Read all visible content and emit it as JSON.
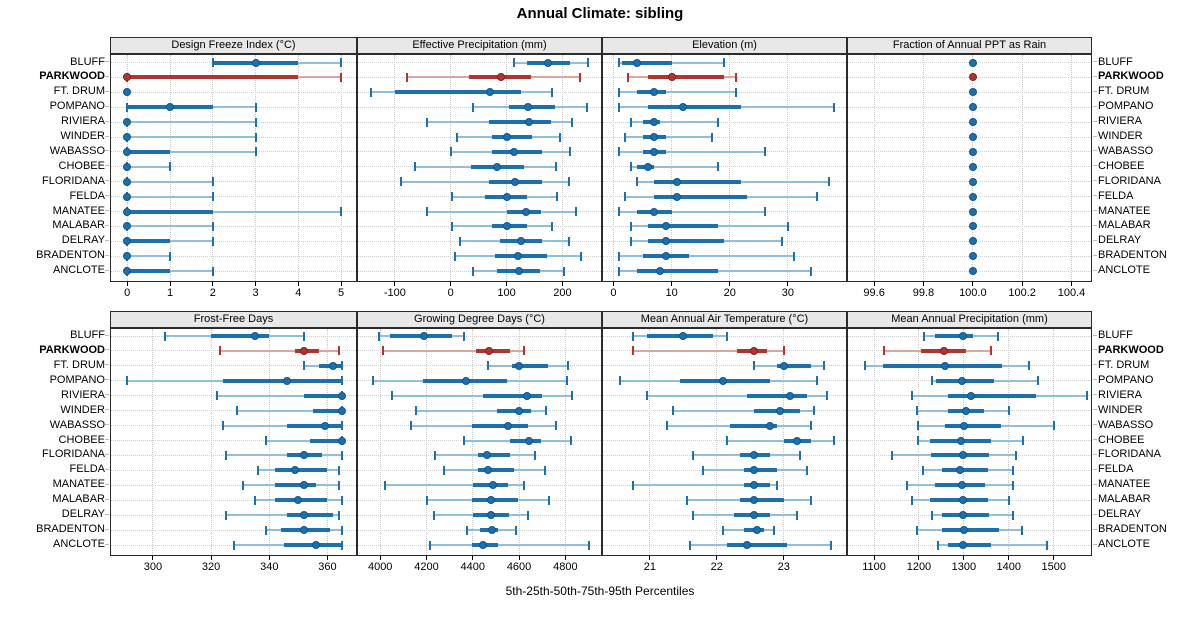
{
  "title": "Annual Climate: sibling",
  "xlabel": "5th-25th-50th-75th-95th Percentiles",
  "highlight": "PARKWOOD",
  "locations": [
    "BLUFF",
    "PARKWOOD",
    "FT. DRUM",
    "POMPANO",
    "RIVIERA",
    "WINDER",
    "WABASSO",
    "CHOBEE",
    "FLORIDANA",
    "FELDA",
    "MANATEE",
    "MALABAR",
    "DELRAY",
    "BRADENTON",
    "ANCLOTE"
  ],
  "colors": {
    "series": "#1d6fad",
    "series_light": "#92bedb",
    "series_dark": "#10568c",
    "highlight": "#b23431",
    "highlight_light": "#dca5a2",
    "highlight_dark": "#7f2220",
    "grid": "#c8c8c8",
    "strip_bg": "#e8e8e8",
    "border": "#2b2b2b"
  },
  "chart_data": {
    "type": "scatter",
    "subtype": "percentile-interval-dotplot",
    "percentiles": [
      "5th",
      "25th",
      "50th",
      "75th",
      "95th"
    ],
    "legend_position": "none",
    "grid": "dotted",
    "panels": [
      {
        "title": "Design Freeze Index (°C)",
        "xlim": [
          -0.38,
          5.35
        ],
        "ticks": [
          0,
          1,
          2,
          3,
          4,
          5
        ],
        "tick_labels": [
          "0",
          "1",
          "2",
          "3",
          "4",
          "5"
        ],
        "series": [
          [
            2,
            2,
            3,
            4,
            5
          ],
          [
            0,
            0,
            0,
            4,
            5
          ],
          [
            0,
            0,
            0,
            0,
            0
          ],
          [
            0,
            0,
            1,
            2,
            3
          ],
          [
            0,
            0,
            0,
            0,
            3
          ],
          [
            0,
            0,
            0,
            0,
            3
          ],
          [
            0,
            0,
            0,
            1,
            3
          ],
          [
            0,
            0,
            0,
            0,
            1
          ],
          [
            0,
            0,
            0,
            0,
            2
          ],
          [
            0,
            0,
            0,
            0,
            2
          ],
          [
            0,
            0,
            0,
            2,
            5
          ],
          [
            0,
            0,
            0,
            0,
            2
          ],
          [
            0,
            0,
            0,
            1,
            2
          ],
          [
            0,
            0,
            0,
            0,
            1
          ],
          [
            0,
            0,
            0,
            1,
            2
          ]
        ]
      },
      {
        "title": "Effective Precipitation (mm)",
        "xlim": [
          -166,
          269
        ],
        "ticks": [
          -100,
          0,
          100,
          200
        ],
        "tick_labels": [
          "-100",
          "0",
          "100",
          "200"
        ],
        "series": [
          [
            113,
            137,
            175,
            213,
            245
          ],
          [
            -78,
            32,
            90,
            144,
            231
          ],
          [
            -143,
            -100,
            71,
            126,
            182
          ],
          [
            39,
            105,
            139,
            186,
            244
          ],
          [
            -43,
            68,
            140,
            179,
            217
          ],
          [
            12,
            74,
            100,
            146,
            196
          ],
          [
            0,
            74,
            113,
            164,
            214
          ],
          [
            -64,
            36,
            82,
            131,
            189
          ],
          [
            -89,
            68,
            115,
            164,
            211
          ],
          [
            3,
            62,
            100,
            137,
            190
          ],
          [
            -43,
            101,
            134,
            161,
            225
          ],
          [
            2,
            73,
            101,
            136,
            182
          ],
          [
            17,
            89,
            125,
            163,
            211
          ],
          [
            8,
            80,
            121,
            173,
            234
          ],
          [
            40,
            82,
            122,
            160,
            202
          ]
        ]
      },
      {
        "title": "Elevation (m)",
        "xlim": [
          -1.8,
          40
        ],
        "ticks": [
          0,
          10,
          20,
          30
        ],
        "tick_labels": [
          "0",
          "10",
          "20",
          "30"
        ],
        "series": [
          [
            1,
            1.5,
            4,
            10,
            19
          ],
          [
            2.5,
            6,
            10,
            19,
            21
          ],
          [
            1,
            4,
            7,
            9,
            21
          ],
          [
            1,
            6,
            12,
            22,
            38
          ],
          [
            3,
            5,
            7,
            8,
            18
          ],
          [
            2,
            5,
            7,
            9,
            17
          ],
          [
            1,
            5,
            7,
            9,
            26
          ],
          [
            3,
            4,
            6,
            7,
            18
          ],
          [
            4,
            7,
            11,
            22,
            37
          ],
          [
            2,
            7,
            11,
            23,
            35
          ],
          [
            1,
            4,
            7,
            10,
            26
          ],
          [
            3,
            6,
            9,
            18,
            30
          ],
          [
            3,
            6,
            9,
            19,
            29
          ],
          [
            1,
            5,
            9,
            13,
            31
          ],
          [
            1,
            4,
            8,
            18,
            34
          ]
        ]
      },
      {
        "title": "Fraction of Annual PPT as Rain",
        "xlim": [
          99.494,
          100.479
        ],
        "ticks": [
          99.6,
          99.8,
          100.0,
          100.2,
          100.4
        ],
        "tick_labels": [
          "99.6",
          "99.8",
          "100.0",
          "100.2",
          "100.4"
        ],
        "series": [
          [
            100,
            100,
            100,
            100,
            100
          ],
          [
            100,
            100,
            100,
            100,
            100
          ],
          [
            100,
            100,
            100,
            100,
            100
          ],
          [
            100,
            100,
            100,
            100,
            100
          ],
          [
            100,
            100,
            100,
            100,
            100
          ],
          [
            100,
            100,
            100,
            100,
            100
          ],
          [
            100,
            100,
            100,
            100,
            100
          ],
          [
            100,
            100,
            100,
            100,
            100
          ],
          [
            100,
            100,
            100,
            100,
            100
          ],
          [
            100,
            100,
            100,
            100,
            100
          ],
          [
            100,
            100,
            100,
            100,
            100
          ],
          [
            100,
            100,
            100,
            100,
            100
          ],
          [
            100,
            100,
            100,
            100,
            100
          ],
          [
            100,
            100,
            100,
            100,
            100
          ],
          [
            100,
            100,
            100,
            100,
            100
          ]
        ]
      },
      {
        "title": "Frost-Free Days",
        "xlim": [
          285.6,
          369.8
        ],
        "ticks": [
          300,
          320,
          340,
          360
        ],
        "tick_labels": [
          "300",
          "320",
          "340",
          "360"
        ],
        "series": [
          [
            304,
            320,
            335,
            340,
            352
          ],
          [
            323,
            349,
            352,
            357,
            364
          ],
          [
            352,
            357,
            362,
            365,
            365
          ],
          [
            291,
            324,
            346,
            365,
            365
          ],
          [
            322,
            352,
            365,
            365,
            365
          ],
          [
            329,
            355,
            365,
            365,
            365
          ],
          [
            324,
            346,
            359,
            365,
            365
          ],
          [
            339,
            354,
            365,
            365,
            365
          ],
          [
            325,
            346,
            352,
            358,
            365
          ],
          [
            336,
            342,
            349,
            360,
            364
          ],
          [
            331,
            342,
            352,
            356,
            364
          ],
          [
            335,
            342,
            350,
            360,
            365
          ],
          [
            325,
            346,
            352,
            362,
            364
          ],
          [
            339,
            344,
            352,
            361,
            365
          ],
          [
            328,
            345,
            356,
            365,
            365
          ]
        ]
      },
      {
        "title": "Growing Degree Days (°C)",
        "xlim": [
          3904,
          4954
        ],
        "ticks": [
          4000,
          4200,
          4400,
          4600,
          4800
        ],
        "tick_labels": [
          "4000",
          "4200",
          "4400",
          "4600",
          "4800"
        ],
        "series": [
          [
            3996,
            4043,
            4190,
            4309,
            4364
          ],
          [
            4014,
            4413,
            4468,
            4561,
            4623
          ],
          [
            4465,
            4568,
            4600,
            4724,
            4813
          ],
          [
            3967,
            4187,
            4370,
            4547,
            4806
          ],
          [
            4050,
            4446,
            4633,
            4701,
            4830
          ],
          [
            4154,
            4504,
            4600,
            4652,
            4715
          ],
          [
            4132,
            4396,
            4551,
            4637,
            4758
          ],
          [
            4364,
            4561,
            4643,
            4695,
            4824
          ],
          [
            4235,
            4424,
            4460,
            4560,
            4670
          ],
          [
            4277,
            4421,
            4464,
            4580,
            4710
          ],
          [
            4021,
            4403,
            4487,
            4551,
            4620
          ],
          [
            4201,
            4396,
            4479,
            4594,
            4731
          ],
          [
            4234,
            4400,
            4479,
            4558,
            4638
          ],
          [
            4375,
            4432,
            4482,
            4511,
            4585
          ],
          [
            4216,
            4396,
            4446,
            4508,
            4903
          ]
        ]
      },
      {
        "title": "Mean Annual Air Temperature (°C)",
        "xlim": [
          20.3,
          23.93
        ],
        "ticks": [
          21,
          22,
          23
        ],
        "tick_labels": [
          "21",
          "22",
          "23"
        ],
        "series": [
          [
            20.75,
            20.95,
            21.5,
            21.95,
            22.15
          ],
          [
            20.75,
            22.3,
            22.55,
            22.75,
            23.0
          ],
          [
            22.55,
            22.9,
            23.0,
            23.4,
            23.6
          ],
          [
            20.55,
            21.45,
            22.1,
            22.8,
            23.5
          ],
          [
            20.95,
            22.45,
            23.1,
            23.35,
            23.65
          ],
          [
            21.35,
            22.55,
            22.95,
            23.25,
            23.45
          ],
          [
            21.25,
            22.2,
            22.8,
            22.9,
            23.4
          ],
          [
            22.15,
            23.0,
            23.2,
            23.4,
            23.75
          ],
          [
            21.65,
            22.35,
            22.55,
            22.8,
            23.25
          ],
          [
            21.8,
            22.4,
            22.55,
            22.9,
            23.35
          ],
          [
            20.75,
            22.4,
            22.55,
            22.8,
            22.9
          ],
          [
            21.55,
            22.35,
            22.55,
            23.0,
            23.4
          ],
          [
            21.65,
            22.25,
            22.55,
            22.8,
            23.2
          ],
          [
            22.1,
            22.4,
            22.6,
            22.7,
            22.85
          ],
          [
            21.6,
            22.15,
            22.45,
            23.05,
            23.7
          ]
        ]
      },
      {
        "title": "Mean Annual Precipitation (mm)",
        "xlim": [
          1042,
          1583
        ],
        "ticks": [
          1100,
          1200,
          1300,
          1400,
          1500
        ],
        "tick_labels": [
          "1100",
          "1200",
          "1300",
          "1400",
          "1500"
        ],
        "series": [
          [
            1212,
            1235,
            1297,
            1320,
            1375
          ],
          [
            1122,
            1205,
            1255,
            1305,
            1360
          ],
          [
            1080,
            1120,
            1258,
            1385,
            1445
          ],
          [
            1228,
            1238,
            1296,
            1367,
            1465
          ],
          [
            1185,
            1265,
            1315,
            1460,
            1575
          ],
          [
            1195,
            1265,
            1305,
            1345,
            1400
          ],
          [
            1198,
            1257,
            1300,
            1382,
            1500
          ],
          [
            1198,
            1225,
            1293,
            1361,
            1432
          ],
          [
            1140,
            1227,
            1297,
            1356,
            1415
          ],
          [
            1210,
            1251,
            1291,
            1354,
            1410
          ],
          [
            1174,
            1235,
            1295,
            1346,
            1410
          ],
          [
            1185,
            1225,
            1297,
            1354,
            1400
          ],
          [
            1228,
            1251,
            1299,
            1356,
            1410
          ],
          [
            1196,
            1251,
            1300,
            1379,
            1430
          ],
          [
            1243,
            1265,
            1299,
            1361,
            1485
          ]
        ]
      }
    ]
  }
}
